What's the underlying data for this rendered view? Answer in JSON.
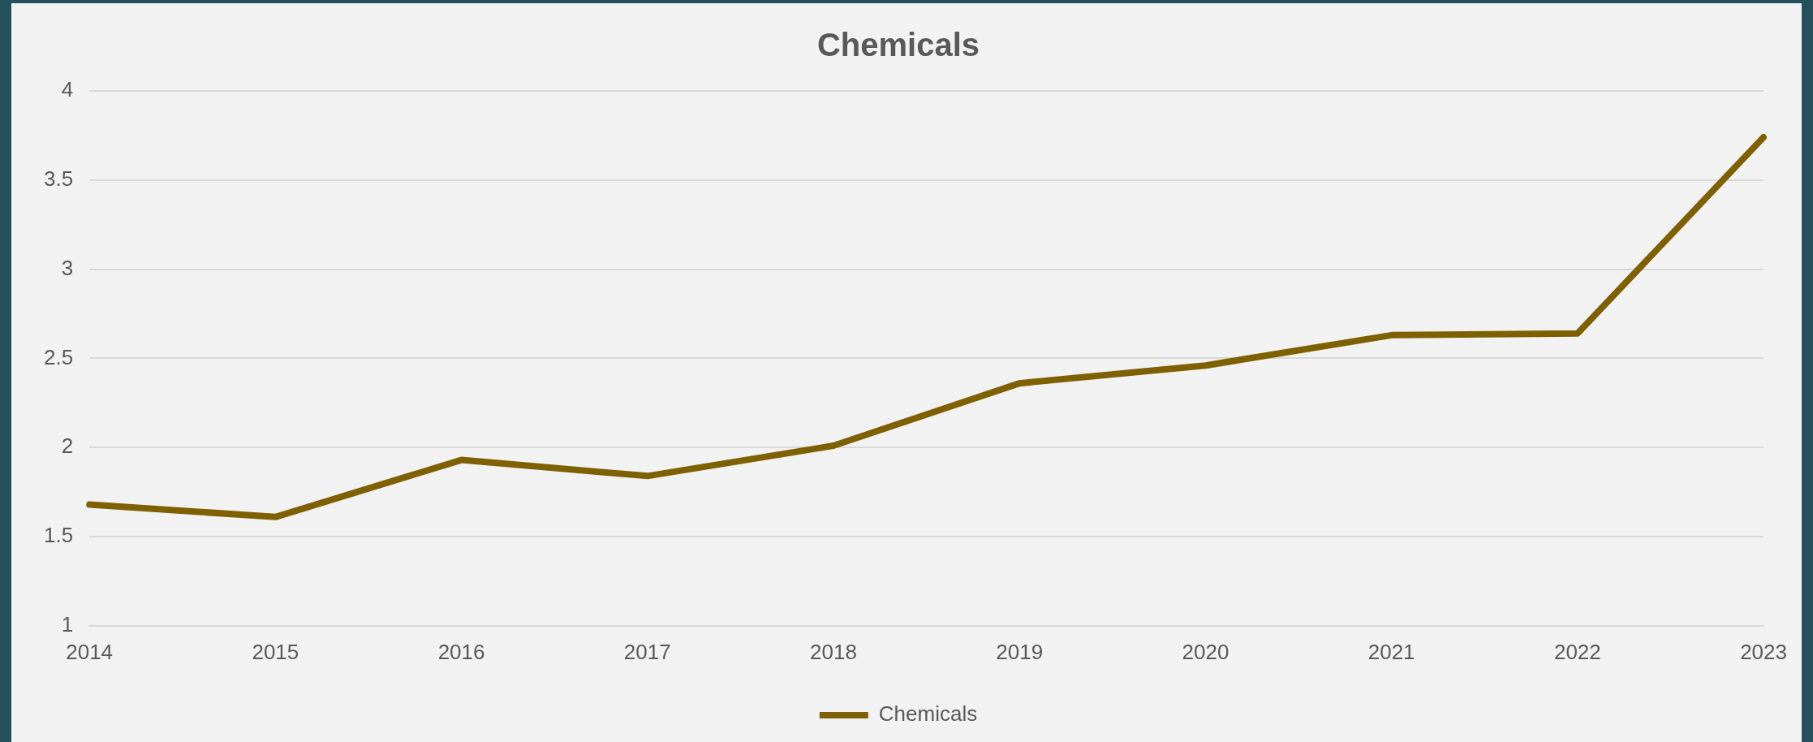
{
  "chart_data": {
    "type": "line",
    "title": "Chemicals",
    "categories": [
      "2014",
      "2015",
      "2016",
      "2017",
      "2018",
      "2019",
      "2020",
      "2021",
      "2022",
      "2023"
    ],
    "series": [
      {
        "name": "Chemicals",
        "color": "#7f6000",
        "values": [
          1.68,
          1.61,
          1.93,
          1.84,
          2.01,
          2.36,
          2.46,
          2.63,
          2.64,
          3.74
        ]
      }
    ],
    "ylim": [
      1,
      4
    ],
    "yticks": [
      1,
      1.5,
      2,
      2.5,
      3,
      3.5,
      4
    ],
    "grid": "y",
    "legend": "bottom",
    "marker": "none"
  }
}
